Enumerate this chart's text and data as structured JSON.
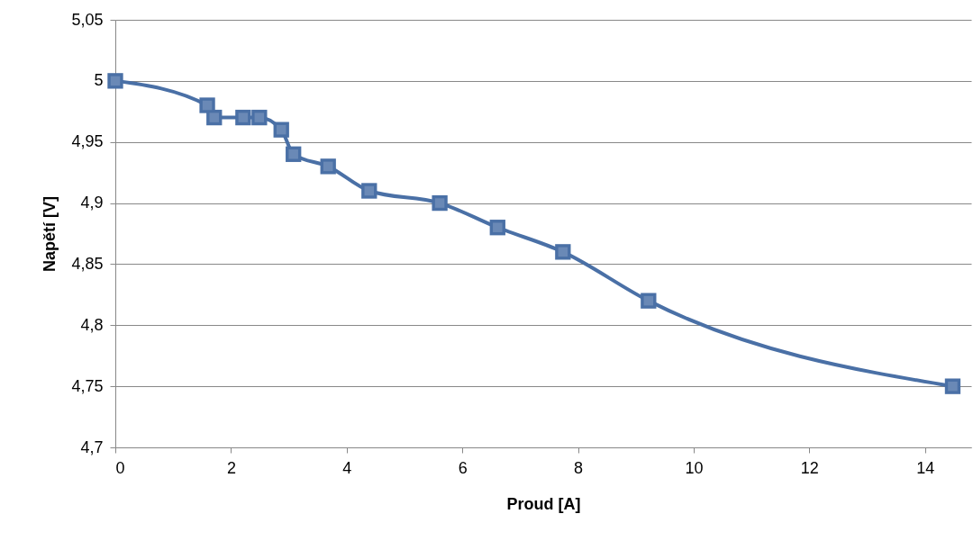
{
  "chart_data": {
    "type": "line",
    "xlabel": "Proud [A]",
    "ylabel": "Napětí [V]",
    "x": [
      0,
      1.59,
      1.71,
      2.21,
      2.49,
      2.87,
      3.08,
      3.68,
      4.39,
      5.61,
      6.61,
      7.74,
      9.22,
      14.48
    ],
    "series": [
      {
        "color": "#4a70a6",
        "values": [
          5,
          4.98,
          4.97,
          4.97,
          4.97,
          4.96,
          4.94,
          4.93,
          4.91,
          4.9,
          4.88,
          4.86,
          4.82,
          4.75
        ]
      }
    ],
    "xlim": [
      0,
      14.8
    ],
    "xticks": [
      0,
      2,
      4,
      6,
      8,
      10,
      12,
      14
    ],
    "ylim": [
      4.7,
      5.05
    ],
    "yticks": [
      {
        "value": 4.7,
        "label": "4,7"
      },
      {
        "value": 4.75,
        "label": "4,75"
      },
      {
        "value": 4.8,
        "label": "4,8"
      },
      {
        "value": 4.85,
        "label": "4,85"
      },
      {
        "value": 4.9,
        "label": "4,9"
      },
      {
        "value": 4.95,
        "label": "4,95"
      },
      {
        "value": 5,
        "label": "5"
      },
      {
        "value": 5.05,
        "label": "5,05"
      }
    ],
    "grid": "y",
    "marker": "square",
    "line_style": "solid",
    "legend": false
  }
}
